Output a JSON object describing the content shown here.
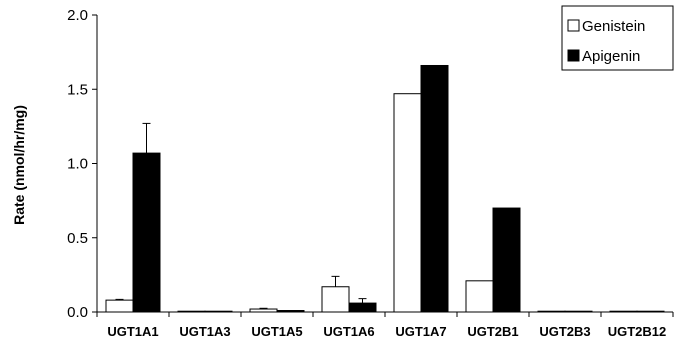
{
  "chart_data": {
    "type": "bar",
    "ylabel": "Rate (nmol/hr/mg)",
    "xlabel": "",
    "ylim": [
      0,
      2.0
    ],
    "yticks": [
      "0.0",
      "0.5",
      "1.0",
      "1.5",
      "2.0"
    ],
    "categories": [
      "UGT1A1",
      "UGT1A3",
      "UGT1A5",
      "UGT1A6",
      "UGT1A7",
      "UGT2B1",
      "UGT2B3",
      "UGT2B12"
    ],
    "series": [
      {
        "name": "Genistein",
        "color": "#ffffff",
        "values": [
          0.08,
          0.0,
          0.02,
          0.17,
          1.47,
          0.21,
          0.0,
          0.0
        ],
        "error": [
          0.005,
          0,
          0.005,
          0.07,
          0,
          0,
          0,
          0
        ]
      },
      {
        "name": "Apigenin",
        "color": "#000000",
        "values": [
          1.07,
          0.005,
          0.01,
          0.06,
          1.66,
          0.7,
          0.005,
          0.0
        ],
        "error": [
          0.2,
          0,
          0,
          0.03,
          0,
          0,
          0,
          0
        ]
      }
    ],
    "legend_position": "top-right",
    "grid": false
  }
}
